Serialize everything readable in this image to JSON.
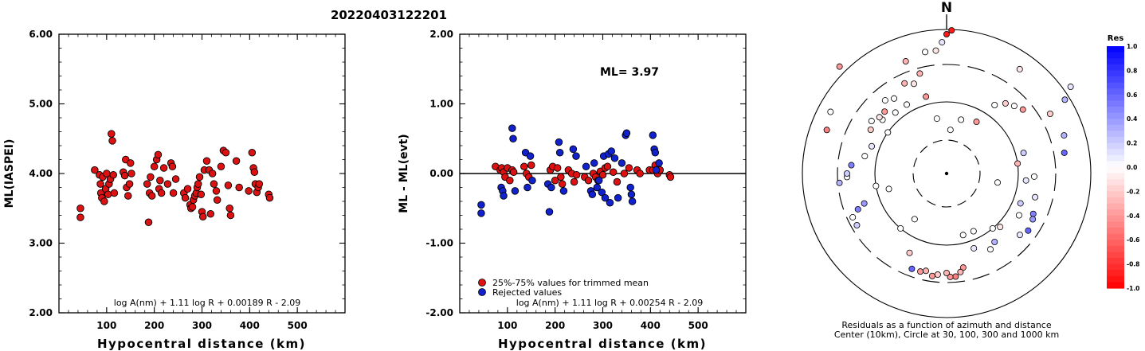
{
  "title": "20220403122201",
  "chart_data": [
    {
      "type": "scatter",
      "ylabel": "ML(IASPEI)",
      "xlabel": "Hypocentral distance (km)",
      "xlim": [
        0,
        600
      ],
      "ylim": [
        2,
        6
      ],
      "xticks": [
        "100",
        "200",
        "300",
        "400",
        "500"
      ],
      "yticks": [
        "2.00",
        "3.00",
        "4.00",
        "5.00",
        "6.00"
      ],
      "formula": "log A(nm) + 1.11 log R + 0.00189 R - 2.09",
      "color": "#dd1111",
      "points": [
        [
          45,
          3.5
        ],
        [
          45,
          3.37
        ],
        [
          75,
          4.05
        ],
        [
          85,
          3.98
        ],
        [
          87,
          3.85
        ],
        [
          88,
          3.72
        ],
        [
          90,
          3.65
        ],
        [
          92,
          3.95
        ],
        [
          95,
          3.6
        ],
        [
          98,
          3.78
        ],
        [
          100,
          4.0
        ],
        [
          103,
          3.7
        ],
        [
          105,
          3.85
        ],
        [
          108,
          3.92
        ],
        [
          110,
          4.57
        ],
        [
          112,
          4.47
        ],
        [
          114,
          3.98
        ],
        [
          116,
          3.72
        ],
        [
          135,
          4.02
        ],
        [
          138,
          3.97
        ],
        [
          140,
          4.2
        ],
        [
          142,
          3.8
        ],
        [
          145,
          3.68
        ],
        [
          148,
          3.85
        ],
        [
          150,
          4.15
        ],
        [
          152,
          4.0
        ],
        [
          185,
          3.85
        ],
        [
          188,
          3.3
        ],
        [
          190,
          3.72
        ],
        [
          192,
          3.95
        ],
        [
          195,
          3.68
        ],
        [
          200,
          4.1
        ],
        [
          205,
          4.2
        ],
        [
          208,
          4.27
        ],
        [
          210,
          3.78
        ],
        [
          212,
          3.9
        ],
        [
          215,
          3.72
        ],
        [
          220,
          4.08
        ],
        [
          228,
          3.85
        ],
        [
          235,
          4.15
        ],
        [
          238,
          4.1
        ],
        [
          240,
          3.72
        ],
        [
          245,
          3.92
        ],
        [
          262,
          3.72
        ],
        [
          265,
          3.65
        ],
        [
          270,
          3.78
        ],
        [
          275,
          3.55
        ],
        [
          277,
          3.5
        ],
        [
          280,
          3.52
        ],
        [
          282,
          3.62
        ],
        [
          285,
          3.68
        ],
        [
          288,
          3.72
        ],
        [
          290,
          3.8
        ],
        [
          292,
          3.85
        ],
        [
          295,
          3.95
        ],
        [
          298,
          3.7
        ],
        [
          300,
          3.45
        ],
        [
          302,
          3.38
        ],
        [
          305,
          4.05
        ],
        [
          310,
          4.18
        ],
        [
          315,
          4.05
        ],
        [
          318,
          3.42
        ],
        [
          322,
          4.0
        ],
        [
          325,
          3.85
        ],
        [
          330,
          3.75
        ],
        [
          332,
          3.62
        ],
        [
          340,
          4.1
        ],
        [
          345,
          4.33
        ],
        [
          350,
          4.3
        ],
        [
          355,
          3.83
        ],
        [
          358,
          3.5
        ],
        [
          360,
          3.4
        ],
        [
          372,
          4.18
        ],
        [
          378,
          3.8
        ],
        [
          398,
          3.75
        ],
        [
          405,
          4.3
        ],
        [
          408,
          4.08
        ],
        [
          410,
          4.02
        ],
        [
          412,
          3.85
        ],
        [
          415,
          3.73
        ],
        [
          418,
          3.8
        ],
        [
          420,
          3.85
        ],
        [
          440,
          3.7
        ],
        [
          442,
          3.65
        ]
      ]
    },
    {
      "type": "scatter",
      "ylabel": "ML - ML(evt)",
      "xlabel": "Hypocentral distance (km)",
      "xlim": [
        0,
        600
      ],
      "ylim": [
        -2,
        2
      ],
      "xticks": [
        "100",
        "200",
        "300",
        "400",
        "500"
      ],
      "yticks": [
        "-2.00",
        "-1.00",
        "0.00",
        "1.00",
        "2.00"
      ],
      "annotation": "ML= 3.97",
      "formula": "log A(nm) + 1.11 log R + 0.00254 R - 2.09",
      "legend": [
        {
          "label": "25%-75% values for trimmed mean",
          "color": "#dd1111"
        },
        {
          "label": "Rejected values",
          "color": "#1122cc"
        }
      ],
      "trimmed": [
        [
          75,
          0.1
        ],
        [
          85,
          0.05
        ],
        [
          88,
          0.08
        ],
        [
          92,
          0.02
        ],
        [
          95,
          -0.05
        ],
        [
          100,
          0.08
        ],
        [
          105,
          -0.1
        ],
        [
          110,
          0.05
        ],
        [
          113,
          0.02
        ],
        [
          135,
          0.1
        ],
        [
          140,
          0.0
        ],
        [
          145,
          -0.05
        ],
        [
          150,
          0.12
        ],
        [
          190,
          0.05
        ],
        [
          195,
          0.1
        ],
        [
          200,
          -0.1
        ],
        [
          205,
          0.08
        ],
        [
          212,
          -0.05
        ],
        [
          215,
          -0.15
        ],
        [
          228,
          0.05
        ],
        [
          235,
          0.0
        ],
        [
          240,
          -0.12
        ],
        [
          245,
          -0.02
        ],
        [
          262,
          -0.05
        ],
        [
          270,
          -0.1
        ],
        [
          280,
          0.0
        ],
        [
          285,
          -0.05
        ],
        [
          290,
          -0.1
        ],
        [
          295,
          0.03
        ],
        [
          300,
          -0.02
        ],
        [
          305,
          0.08
        ],
        [
          310,
          0.1
        ],
        [
          322,
          0.02
        ],
        [
          330,
          -0.12
        ],
        [
          345,
          0.0
        ],
        [
          355,
          0.08
        ],
        [
          372,
          0.05
        ],
        [
          378,
          0.0
        ],
        [
          398,
          0.05
        ],
        [
          405,
          0.05
        ],
        [
          410,
          0.12
        ],
        [
          415,
          0.0
        ],
        [
          420,
          0.05
        ],
        [
          440,
          -0.02
        ],
        [
          442,
          -0.05
        ]
      ],
      "rejected": [
        [
          45,
          -0.45
        ],
        [
          45,
          -0.57
        ],
        [
          87,
          -0.2
        ],
        [
          90,
          -0.25
        ],
        [
          92,
          -0.32
        ],
        [
          110,
          0.65
        ],
        [
          112,
          0.5
        ],
        [
          116,
          -0.25
        ],
        [
          138,
          0.3
        ],
        [
          142,
          -0.2
        ],
        [
          148,
          0.25
        ],
        [
          152,
          -0.1
        ],
        [
          185,
          -0.15
        ],
        [
          188,
          -0.55
        ],
        [
          192,
          -0.2
        ],
        [
          208,
          0.45
        ],
        [
          210,
          0.3
        ],
        [
          218,
          -0.25
        ],
        [
          238,
          0.35
        ],
        [
          244,
          0.25
        ],
        [
          265,
          0.1
        ],
        [
          275,
          -0.25
        ],
        [
          278,
          -0.3
        ],
        [
          282,
          0.15
        ],
        [
          288,
          -0.2
        ],
        [
          292,
          -0.1
        ],
        [
          298,
          -0.27
        ],
        [
          302,
          0.25
        ],
        [
          305,
          -0.35
        ],
        [
          312,
          0.28
        ],
        [
          315,
          -0.42
        ],
        [
          318,
          0.32
        ],
        [
          325,
          0.22
        ],
        [
          332,
          -0.35
        ],
        [
          340,
          0.15
        ],
        [
          348,
          0.55
        ],
        [
          350,
          0.58
        ],
        [
          358,
          -0.2
        ],
        [
          360,
          -0.3
        ],
        [
          362,
          -0.4
        ],
        [
          405,
          0.55
        ],
        [
          408,
          0.35
        ],
        [
          410,
          0.3
        ],
        [
          412,
          0.05
        ],
        [
          418,
          0.15
        ]
      ]
    },
    {
      "type": "scatter",
      "subtype": "polar",
      "north_label": "N",
      "colorbar_title": "Res",
      "colorbar_ticks": [
        "1.0",
        "0.8",
        "0.6",
        "0.4",
        "0.2",
        "0.0",
        "-0.2",
        "-0.4",
        "-0.6",
        "-0.8",
        "-1.0"
      ],
      "caption_line1": "Residuals as a function of azimuth and distance",
      "caption_line2": "Center (10km), Circle at 30, 100, 300 and 1000 km",
      "rings_km": [
        30,
        100,
        300,
        1000
      ],
      "stations": [
        [
          0,
          350,
          -0.9
        ],
        [
          2,
          360,
          -0.9
        ],
        [
          -25,
          250,
          -0.3
        ],
        [
          -45,
          380,
          -0.4
        ],
        [
          35,
          320,
          -0.1
        ],
        [
          55,
          380,
          0.1
        ],
        [
          58,
          350,
          0.3
        ],
        [
          -70,
          320,
          -0.5
        ],
        [
          -62,
          330,
          0.0
        ],
        [
          50,
          250,
          -0.4
        ],
        [
          15,
          140,
          0.0
        ],
        [
          -55,
          180,
          0.0
        ],
        [
          72,
          310,
          0.3
        ],
        [
          75,
          200,
          0.2
        ],
        [
          80,
          300,
          0.6
        ],
        [
          82,
          180,
          -0.3
        ],
        [
          92,
          220,
          0.0
        ],
        [
          95,
          200,
          0.1
        ],
        [
          100,
          130,
          0.0
        ],
        [
          105,
          230,
          0.1
        ],
        [
          112,
          200,
          0.2
        ],
        [
          115,
          240,
          0.5
        ],
        [
          118,
          245,
          0.4
        ],
        [
          120,
          210,
          0.0
        ],
        [
          125,
          250,
          0.6
        ],
        [
          130,
          240,
          0.1
        ],
        [
          135,
          190,
          -0.1
        ],
        [
          140,
          180,
          0.0
        ],
        [
          145,
          210,
          0.3
        ],
        [
          150,
          220,
          0.0
        ],
        [
          155,
          160,
          0.0
        ],
        [
          160,
          200,
          0.1
        ],
        [
          165,
          160,
          0.0
        ],
        [
          170,
          240,
          -0.4
        ],
        [
          172,
          250,
          -0.3
        ],
        [
          175,
          260,
          -0.5
        ],
        [
          178,
          260,
          -0.4
        ],
        [
          180,
          250,
          -0.3
        ],
        [
          185,
          255,
          -0.2
        ],
        [
          188,
          260,
          -0.4
        ],
        [
          192,
          250,
          -0.3
        ],
        [
          195,
          255,
          -0.4
        ],
        [
          200,
          255,
          0.6
        ],
        [
          205,
          220,
          -0.2
        ],
        [
          215,
          140,
          0.0
        ],
        [
          220,
          180,
          0.0
        ],
        [
          240,
          260,
          0.2
        ],
        [
          245,
          260,
          0.0
        ],
        [
          248,
          240,
          0.5
        ],
        [
          250,
          220,
          0.4
        ],
        [
          255,
          150,
          0.0
        ],
        [
          260,
          180,
          0.0
        ],
        [
          265,
          270,
          0.3
        ],
        [
          268,
          250,
          0.0
        ],
        [
          270,
          250,
          0.2
        ],
        [
          275,
          240,
          0.5
        ],
        [
          282,
          210,
          0.0
        ],
        [
          290,
          200,
          0.1
        ],
        [
          300,
          220,
          -0.2
        ],
        [
          305,
          230,
          0.0
        ],
        [
          310,
          210,
          0.0
        ],
        [
          315,
          220,
          -0.4
        ],
        [
          320,
          200,
          0.0
        ],
        [
          325,
          230,
          0.0
        ],
        [
          340,
          240,
          -0.1
        ],
        [
          345,
          260,
          -0.3
        ],
        [
          350,
          310,
          0.0
        ],
        [
          355,
          310,
          -0.1
        ],
        [
          358,
          330,
          0.1
        ],
        [
          5,
          110,
          0.0
        ],
        [
          30,
          150,
          -0.4
        ],
        [
          -15,
          200,
          -0.4
        ],
        [
          -10,
          140,
          0.0
        ],
        [
          35,
          210,
          0.0
        ],
        [
          40,
          230,
          -0.2
        ],
        [
          45,
          240,
          0.0
        ],
        [
          -30,
          200,
          0.0
        ],
        [
          -50,
          220,
          -0.1
        ],
        [
          -40,
          240,
          0.0
        ],
        [
          60,
          300,
          -0.2
        ],
        [
          -20,
          300,
          -0.3
        ]
      ]
    }
  ]
}
